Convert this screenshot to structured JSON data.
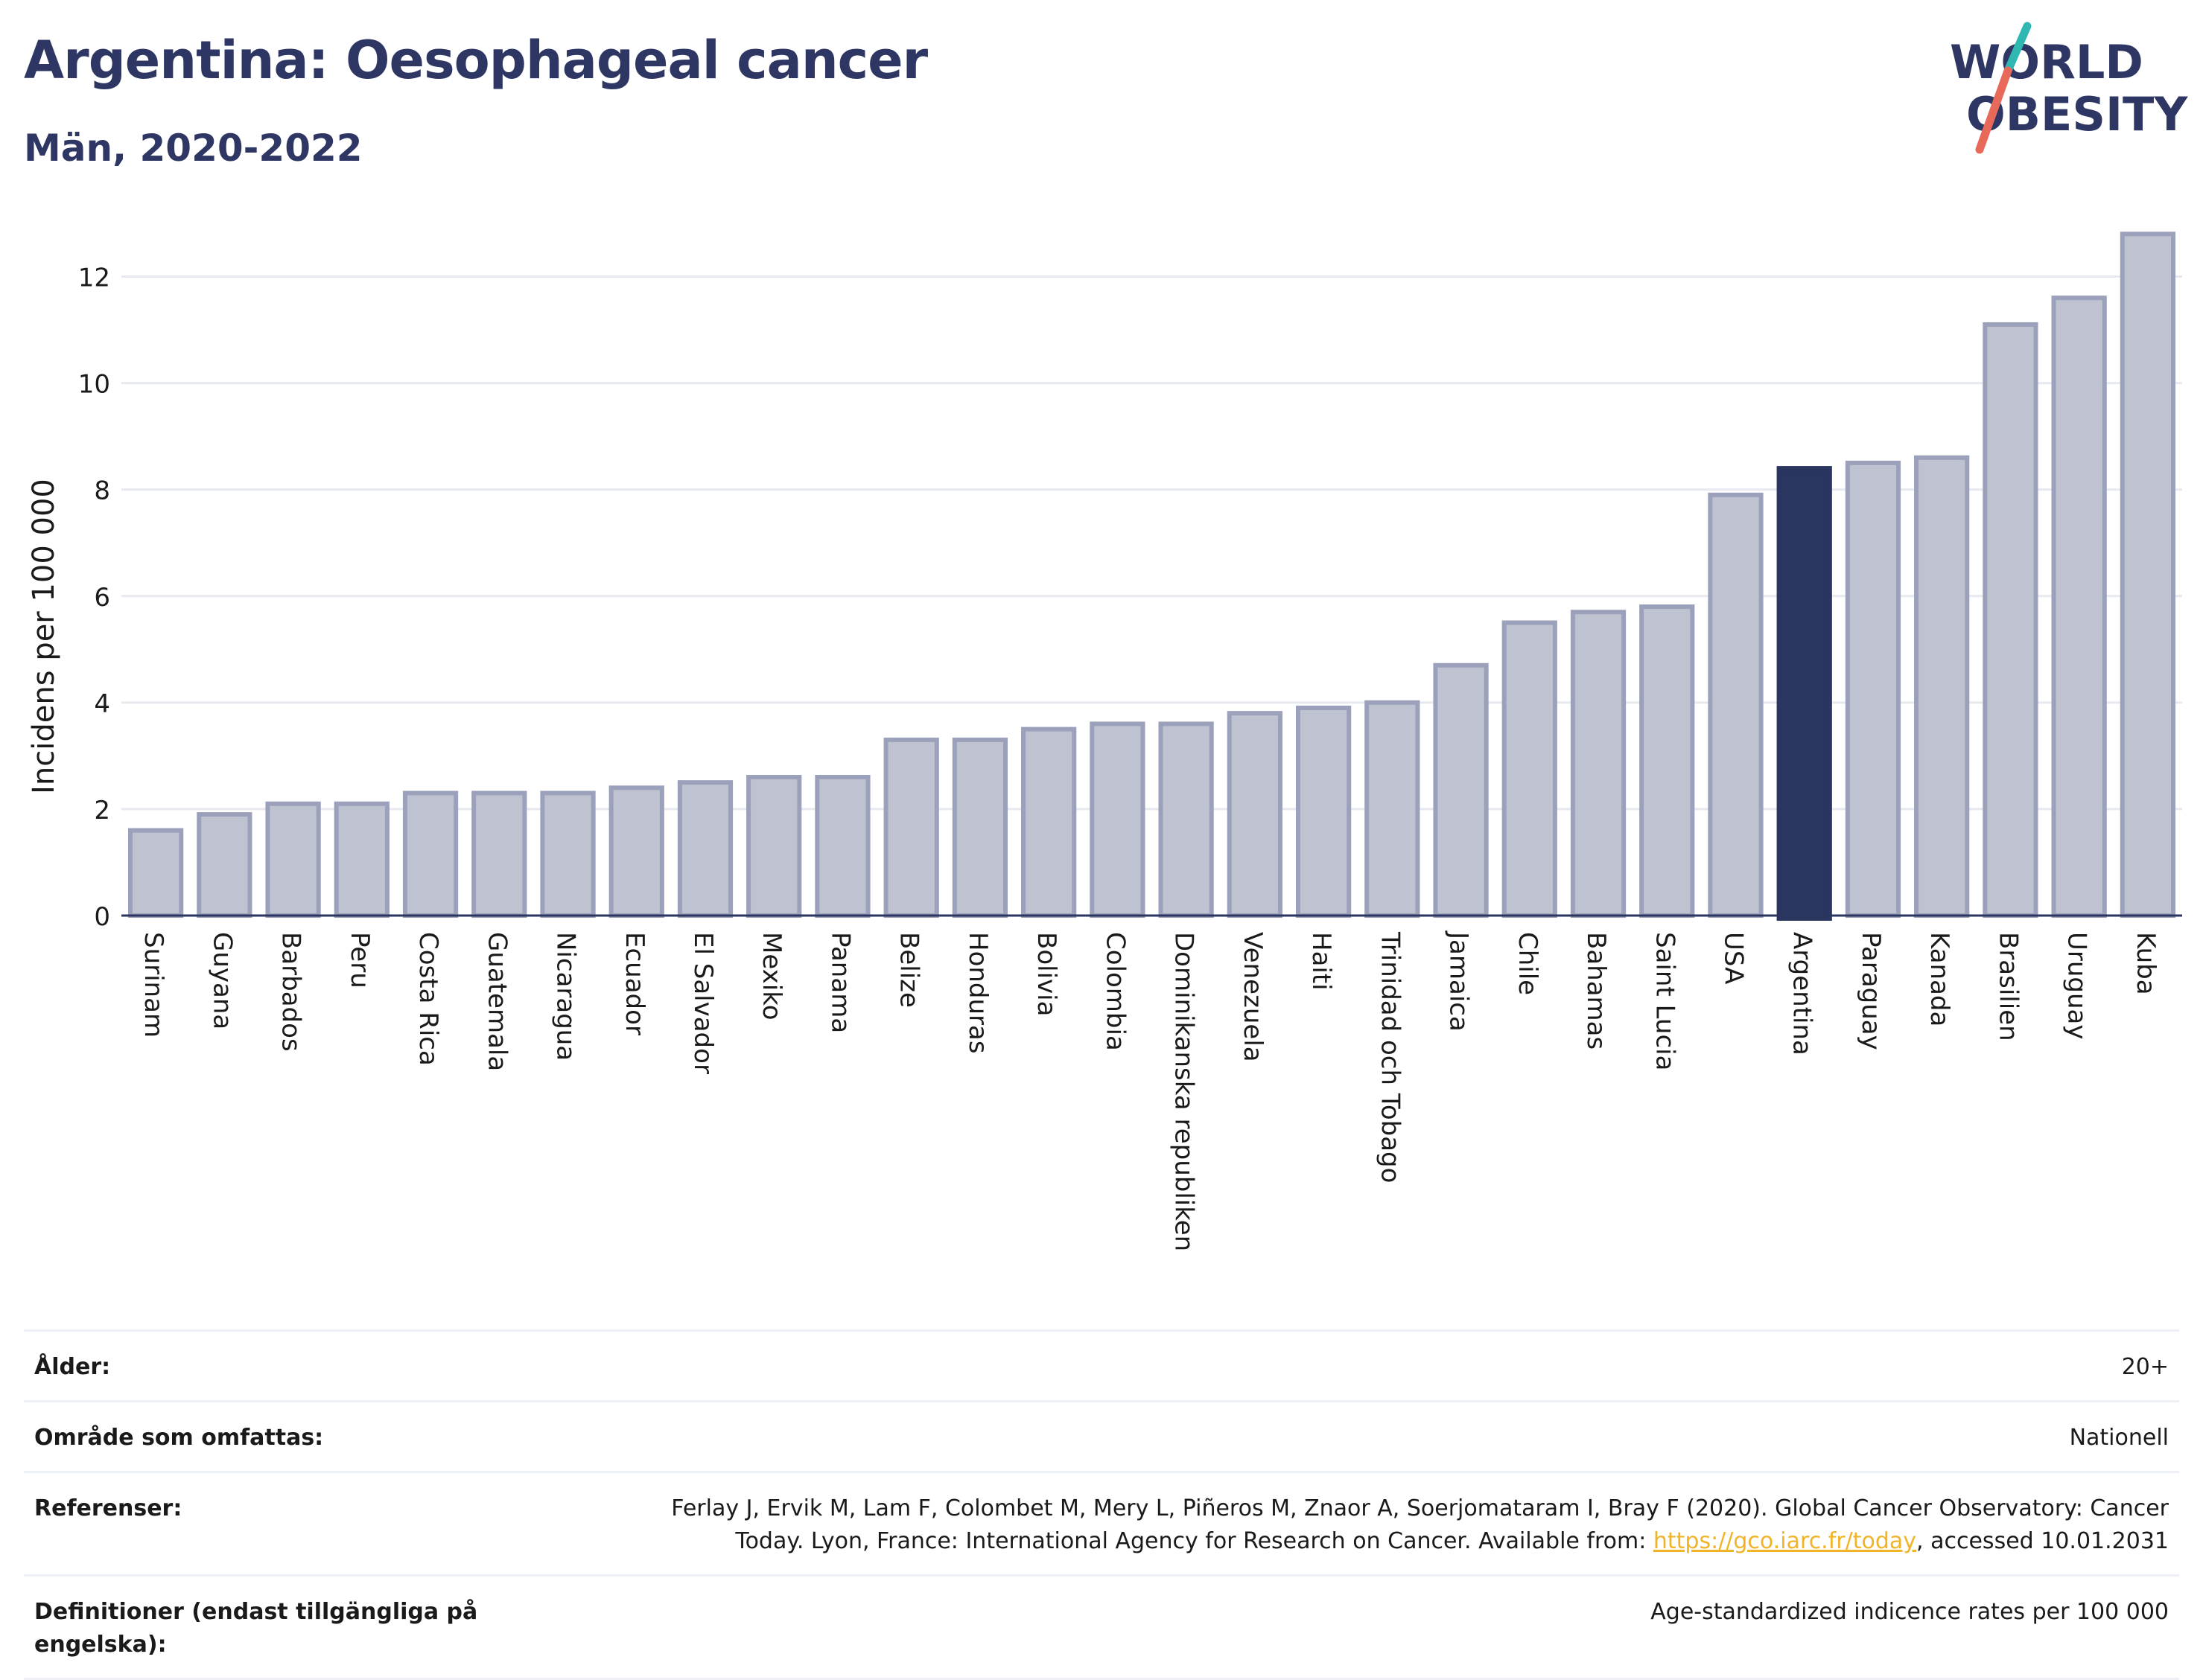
{
  "title": "Argentina: Oesophageal cancer",
  "subtitle": "Män, 2020-2022",
  "logo": {
    "line1": "WORLD",
    "line2": "OBESITY",
    "slash_top_color": "#2fb7b2",
    "slash_bottom_color": "#e8695a",
    "text_color": "#2e3763"
  },
  "colors": {
    "bar": "#bfc3d1",
    "bar_border": "#9ba1bb",
    "highlight": "#2a3560",
    "grid": "#e6e9ef",
    "axis": "#2a3560"
  },
  "chart_data": {
    "type": "bar",
    "title": "",
    "xlabel": "",
    "ylabel": "Incidens per 100 000",
    "ylim": [
      0,
      13
    ],
    "yticks": [
      0,
      2,
      4,
      6,
      8,
      10,
      12
    ],
    "grid": true,
    "highlight": "Argentina",
    "categories": [
      "Surinam",
      "Guyana",
      "Barbados",
      "Peru",
      "Costa Rica",
      "Guatemala",
      "Nicaragua",
      "Ecuador",
      "El Salvador",
      "Mexiko",
      "Panama",
      "Belize",
      "Honduras",
      "Bolivia",
      "Colombia",
      "Dominikanska republiken",
      "Venezuela",
      "Haiti",
      "Trinidad och Tobago",
      "Jamaica",
      "Chile",
      "Bahamas",
      "Saint Lucia",
      "USA",
      "Argentina",
      "Paraguay",
      "Kanada",
      "Brasilien",
      "Uruguay",
      "Kuba"
    ],
    "values": [
      1.6,
      1.9,
      2.1,
      2.1,
      2.3,
      2.3,
      2.3,
      2.4,
      2.5,
      2.6,
      2.6,
      3.3,
      3.3,
      3.5,
      3.6,
      3.6,
      3.8,
      3.9,
      4.0,
      4.7,
      5.5,
      5.7,
      5.8,
      7.9,
      8.4,
      8.5,
      8.6,
      11.1,
      11.6,
      12.8
    ]
  },
  "info": {
    "age_label": "Ålder:",
    "age_value": "20+",
    "area_label": "Område som omfattas:",
    "area_value": "Nationell",
    "ref_label": "Referenser:",
    "ref_text_1": "Ferlay J, Ervik M, Lam F, Colombet M, Mery L, Piñeros M, Znaor A, Soerjomataram I, Bray F (2020). Global Cancer Observatory: Cancer",
    "ref_text_2": "Today. Lyon, France: International Agency for Research on Cancer. Available from: ",
    "ref_link": "https://gco.iarc.fr/today",
    "ref_text_3": ", accessed 10.01.2031",
    "def_label": "Definitioner (endast tillgängliga på engelska):",
    "def_value": "Age-standardized indicence rates per 100 000"
  }
}
